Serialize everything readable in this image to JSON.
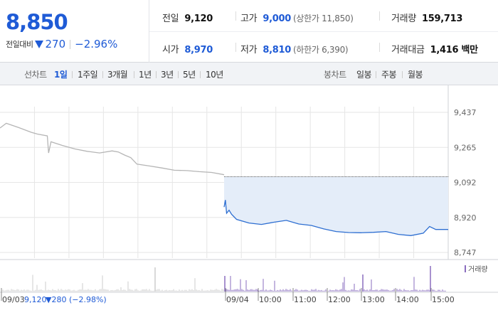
{
  "quote": {
    "price": "8,850",
    "change_label": "전일대비",
    "change_value": "270",
    "change_pct": "−2.96%",
    "direction": "down",
    "color": "#1f5bd6"
  },
  "stats": {
    "prev_close": {
      "label": "전일",
      "value": "9,120"
    },
    "high": {
      "label": "고가",
      "value": "9,000",
      "limit": "(상한가 11,850)"
    },
    "volume": {
      "label": "거래량",
      "value": "159,713"
    },
    "open": {
      "label": "시가",
      "value": "8,970"
    },
    "low": {
      "label": "저가",
      "value": "8,810",
      "limit": "(하한가 6,390)"
    },
    "amount": {
      "label": "거래대금",
      "value": "1,416 백만"
    }
  },
  "periods": {
    "line_label": "선차트",
    "line_items": [
      "1일",
      "1주일",
      "3개월",
      "1년",
      "3년",
      "5년",
      "10년"
    ],
    "selected": "1일",
    "candle_label": "봉차트",
    "candle_items": [
      "일봉",
      "주봉",
      "월봉"
    ]
  },
  "chart_data": {
    "type": "line",
    "y_ticks": [
      "9,437",
      "9,265",
      "9,092",
      "8,920",
      "8,747"
    ],
    "ylim": [
      8747,
      9437
    ],
    "prev_close": 9120,
    "x_labels": [
      "09/03",
      "09/04",
      "10:00",
      "11:00",
      "12:00",
      "13:00",
      "14:00",
      "15:00"
    ],
    "volume_legend": "거래량",
    "footer_info": {
      "date": "09/03",
      "close": "9,120",
      "change": "▼280 (−2.98%)"
    },
    "colors": {
      "prev_day": "#b5b5b5",
      "today": "#2d6ed1",
      "fill": "#e4edf9",
      "grid": "#e6e6e6",
      "volume": "#8a6dbf"
    },
    "series": [
      {
        "name": "09/03",
        "points": [
          [
            0,
            9360
          ],
          [
            0.5,
            9383
          ],
          [
            1.5,
            9362
          ],
          [
            2.5,
            9339
          ],
          [
            3,
            9330
          ],
          [
            3.8,
            9321
          ],
          [
            3.9,
            9237
          ],
          [
            4.1,
            9292
          ],
          [
            5,
            9274
          ],
          [
            6,
            9257
          ],
          [
            7,
            9245
          ],
          [
            8,
            9237
          ],
          [
            9,
            9247
          ],
          [
            9.5,
            9242
          ],
          [
            10,
            9227
          ],
          [
            10.5,
            9214
          ],
          [
            11,
            9182
          ],
          [
            12,
            9173
          ],
          [
            13,
            9163
          ],
          [
            14,
            9152
          ],
          [
            15,
            9150
          ],
          [
            16,
            9145
          ],
          [
            17,
            9141
          ],
          [
            18,
            9130
          ]
        ]
      },
      {
        "name": "09/04",
        "points": [
          [
            0,
            8970
          ],
          [
            0.1,
            9005
          ],
          [
            0.2,
            8940
          ],
          [
            0.4,
            8955
          ],
          [
            0.6,
            8935
          ],
          [
            1,
            8910
          ],
          [
            2,
            8892
          ],
          [
            3,
            8885
          ],
          [
            4,
            8896
          ],
          [
            5,
            8905
          ],
          [
            6,
            8887
          ],
          [
            7,
            8880
          ],
          [
            8,
            8863
          ],
          [
            9,
            8850
          ],
          [
            10,
            8845
          ],
          [
            11,
            8844
          ],
          [
            12,
            8846
          ],
          [
            13,
            8850
          ],
          [
            14,
            8836
          ],
          [
            15,
            8830
          ],
          [
            16,
            8842
          ],
          [
            16.5,
            8875
          ],
          [
            17,
            8860
          ],
          [
            18,
            8860
          ]
        ]
      }
    ]
  }
}
